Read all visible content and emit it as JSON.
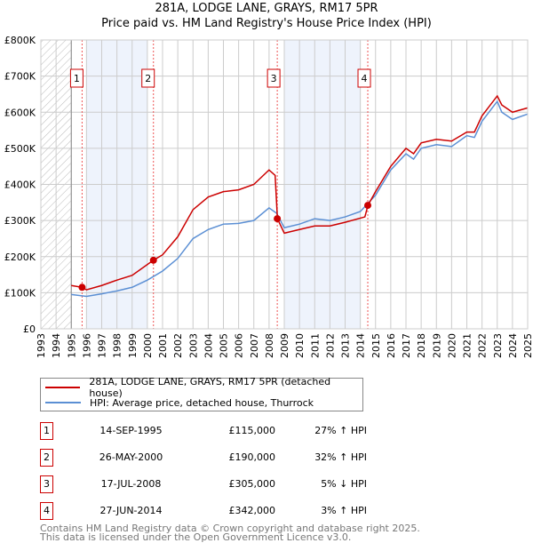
{
  "chart_data": {
    "type": "line",
    "title": "281A, LODGE LANE, GRAYS, RM17 5PR",
    "subtitle": "Price paid vs. HM Land Registry's House Price Index (HPI)",
    "xlim": [
      1993,
      2025
    ],
    "ylim": [
      0,
      800000
    ],
    "x_ticks": [
      "1993",
      "1994",
      "1995",
      "1996",
      "1997",
      "1998",
      "1999",
      "2000",
      "2001",
      "2002",
      "2003",
      "2004",
      "2005",
      "2006",
      "2007",
      "2008",
      "2009",
      "2010",
      "2011",
      "2012",
      "2013",
      "2014",
      "2015",
      "2016",
      "2017",
      "2018",
      "2019",
      "2020",
      "2021",
      "2022",
      "2023",
      "2024",
      "2025"
    ],
    "y_ticks": [
      {
        "v": 0,
        "label": "£0"
      },
      {
        "v": 100000,
        "label": "£100K"
      },
      {
        "v": 200000,
        "label": "£200K"
      },
      {
        "v": 300000,
        "label": "£300K"
      },
      {
        "v": 400000,
        "label": "£400K"
      },
      {
        "v": 500000,
        "label": "£500K"
      },
      {
        "v": 600000,
        "label": "£600K"
      },
      {
        "v": 700000,
        "label": "£700K"
      },
      {
        "v": 800000,
        "label": "£800K"
      }
    ],
    "grid": true,
    "hatched_range": [
      1993,
      1995
    ],
    "shaded_ranges": [
      [
        1996,
        2000
      ],
      [
        2009,
        2014
      ]
    ],
    "series": [
      {
        "name": "281A, LODGE LANE, GRAYS, RM17 5PR (detached house)",
        "color": "#cc0000",
        "x": [
          1995,
          1995.7,
          1996,
          1997,
          1998,
          1999,
          2000.4,
          2001,
          2002,
          2003,
          2004,
          2005,
          2006,
          2007,
          2008,
          2008.4,
          2008.55,
          2009,
          2010,
          2011,
          2012,
          2013,
          2014.3,
          2014.5,
          2015,
          2016,
          2017,
          2017.5,
          2018,
          2019,
          2020,
          2021,
          2021.5,
          2022,
          2023,
          2023.3,
          2024,
          2025
        ],
        "y": [
          120000,
          115000,
          108000,
          120000,
          135000,
          148000,
          190000,
          205000,
          255000,
          330000,
          365000,
          380000,
          385000,
          400000,
          440000,
          425000,
          305000,
          265000,
          275000,
          285000,
          285000,
          295000,
          310000,
          342000,
          380000,
          450000,
          500000,
          485000,
          515000,
          525000,
          520000,
          545000,
          545000,
          590000,
          645000,
          620000,
          600000,
          612000
        ]
      },
      {
        "name": "HPI: Average price, detached house, Thurrock",
        "color": "#5b8fd4",
        "x": [
          1995,
          1996,
          1997,
          1998,
          1999,
          2000,
          2001,
          2002,
          2003,
          2004,
          2005,
          2006,
          2007,
          2008,
          2008.5,
          2009,
          2010,
          2011,
          2012,
          2013,
          2014,
          2015,
          2016,
          2017,
          2017.5,
          2018,
          2019,
          2020,
          2021,
          2021.5,
          2022,
          2023,
          2023.3,
          2024,
          2025
        ],
        "y": [
          95000,
          90000,
          97000,
          105000,
          115000,
          135000,
          160000,
          195000,
          250000,
          275000,
          290000,
          292000,
          300000,
          335000,
          320000,
          280000,
          290000,
          305000,
          300000,
          310000,
          325000,
          370000,
          440000,
          485000,
          470000,
          500000,
          510000,
          505000,
          535000,
          530000,
          575000,
          630000,
          600000,
          580000,
          595000
        ]
      }
    ],
    "sales": [
      {
        "n": "1",
        "x": 1995.71,
        "price": 115000
      },
      {
        "n": "2",
        "x": 2000.4,
        "price": 190000
      },
      {
        "n": "3",
        "x": 2008.54,
        "price": 305000
      },
      {
        "n": "4",
        "x": 2014.49,
        "price": 342000
      }
    ]
  },
  "legend": [
    {
      "label": "281A, LODGE LANE, GRAYS, RM17 5PR (detached house)",
      "color": "#cc0000"
    },
    {
      "label": "HPI: Average price, detached house, Thurrock",
      "color": "#5b8fd4"
    }
  ],
  "table": [
    {
      "n": "1",
      "date": "14-SEP-1995",
      "price": "£115,000",
      "hpi": "27% ↑ HPI"
    },
    {
      "n": "2",
      "date": "26-MAY-2000",
      "price": "£190,000",
      "hpi": "32% ↑ HPI"
    },
    {
      "n": "3",
      "date": "17-JUL-2008",
      "price": "£305,000",
      "hpi": "5% ↓ HPI"
    },
    {
      "n": "4",
      "date": "27-JUN-2014",
      "price": "£342,000",
      "hpi": "3% ↑ HPI"
    }
  ],
  "footer": [
    "Contains HM Land Registry data © Crown copyright and database right 2025.",
    "This data is licensed under the Open Government Licence v3.0."
  ]
}
